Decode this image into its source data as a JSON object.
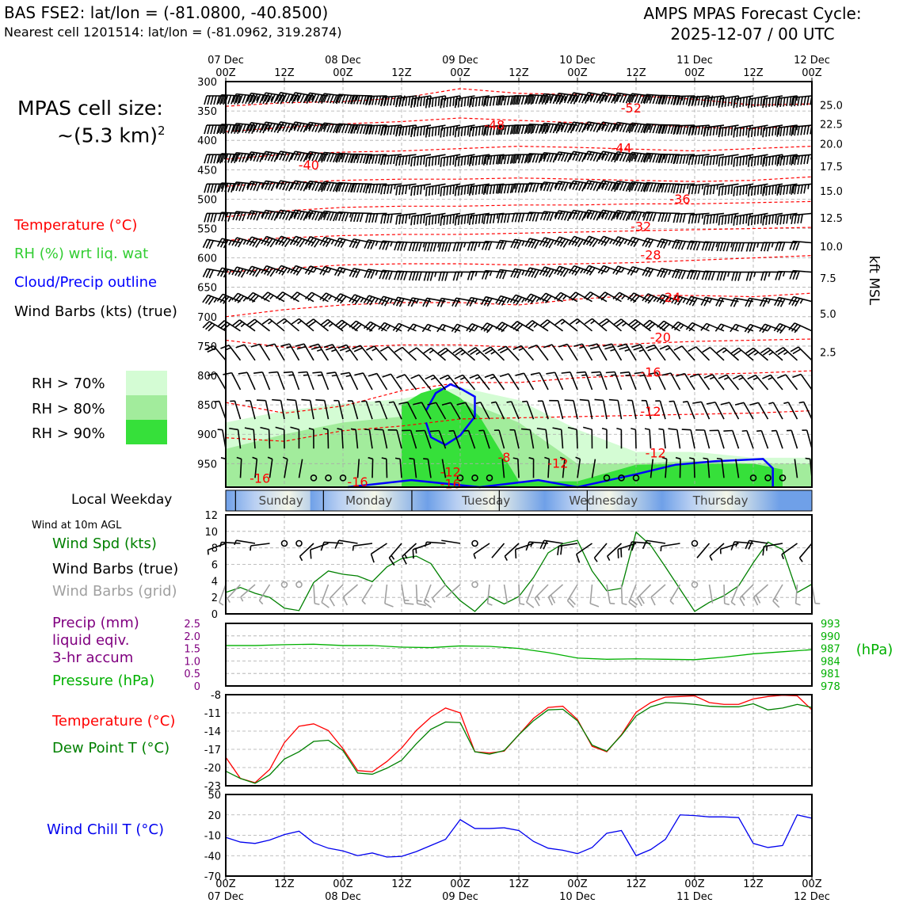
{
  "header": {
    "title": "BAS FSE2: lat/lon = (-81.0800, -40.8500)",
    "subtitle": "Nearest cell 1201514: lat/lon = (-81.0962, 319.2874)",
    "cycle_line1": "AMPS MPAS Forecast Cycle:",
    "cycle_line2": "2025-12-07 / 00 UTC",
    "cell_size_label": "MPAS cell size:",
    "cell_size_value": "~(5.3 km)",
    "cell_size_exp": "2"
  },
  "legend": {
    "temperature": "Temperature (°C)",
    "rh": "RH (%) wrt liq. wat",
    "cloud": "Cloud/Precip outline",
    "wind": "Wind Barbs (kts) (true)",
    "rh70": "RH > 70%",
    "rh80": "RH > 80%",
    "rh90": "RH > 90%",
    "weekday_title": "Local Weekday",
    "wind10m": "Wind at 10m AGL",
    "wind_spd": "Wind Spd (kts)",
    "wind_barbs_true": "Wind Barbs (true)",
    "wind_barbs_grid": "Wind Barbs (grid)",
    "precip1": "Precip (mm)",
    "precip2": "liquid eqiv.",
    "precip3": "3-hr accum",
    "pressure": "Pressure (hPa)",
    "temp2": "Temperature (°C)",
    "dewpoint": "Dew Point T (°C)",
    "windchill": "Wind Chill T (°C)",
    "kft_label": "kft MSL",
    "hpa_label": "(hPa)"
  },
  "colors": {
    "temp": "#ff0000",
    "rh": "#32cd32",
    "cloud": "#0000ff",
    "wind_spd": "#008000",
    "precip": "#800080",
    "pressure": "#00b000",
    "dewpoint": "#008000",
    "windchill": "#0000ee",
    "rh70": "#d4fcd4",
    "rh80": "#a2ec9c",
    "rh90": "#36e03a",
    "grid_barb": "#a0a0a0"
  },
  "chart_data": [
    {
      "type": "heatmap",
      "name": "sounding",
      "top_time_labels": [
        [
          "07 Dec",
          "00Z"
        ],
        [
          "",
          "12Z"
        ],
        [
          "08 Dec",
          "00Z"
        ],
        [
          "",
          "12Z"
        ],
        [
          "09 Dec",
          "00Z"
        ],
        [
          "",
          "12Z"
        ],
        [
          "10 Dec",
          "00Z"
        ],
        [
          "",
          "12Z"
        ],
        [
          "11 Dec",
          "00Z"
        ],
        [
          "",
          "12Z"
        ],
        [
          "12 Dec",
          "00Z"
        ]
      ],
      "pressure_levels": [
        "300",
        "350",
        "400",
        "450",
        "500",
        "550",
        "600",
        "650",
        "700",
        "750",
        "800",
        "850",
        "900",
        "950"
      ],
      "kft_levels": [
        "25.0",
        "22.5",
        "20.0",
        "17.5",
        "15.0",
        "12.5",
        "10.0",
        "7.5",
        "5.0",
        "2.5"
      ],
      "kft_pressure": [
        340,
        372,
        406,
        444,
        486,
        532,
        580,
        634,
        695,
        760
      ],
      "temp_labels": [
        {
          "t": "-52",
          "h": 83,
          "p": 346
        },
        {
          "t": "-48",
          "h": 55,
          "p": 375
        },
        {
          "t": "-44",
          "h": 81,
          "p": 414
        },
        {
          "t": "-40",
          "h": 17,
          "p": 443
        },
        {
          "t": "-36",
          "h": 93,
          "p": 501
        },
        {
          "t": "-32",
          "h": 85,
          "p": 547
        },
        {
          "t": "-28",
          "h": 87,
          "p": 596
        },
        {
          "t": "-24",
          "h": 91,
          "p": 668
        },
        {
          "t": "-20",
          "h": 89,
          "p": 736
        },
        {
          "t": "-16",
          "h": 87,
          "p": 795
        },
        {
          "t": "-12",
          "h": 87,
          "p": 862
        },
        {
          "t": "-12",
          "h": 88,
          "p": 933
        },
        {
          "t": "-8",
          "h": 57,
          "p": 940
        },
        {
          "t": "-12",
          "h": 68,
          "p": 950
        },
        {
          "t": "-12",
          "h": 46,
          "p": 965
        },
        {
          "t": "-16",
          "h": 7,
          "p": 976
        },
        {
          "t": "-16",
          "h": 27,
          "p": 982
        },
        {
          "t": "-16",
          "h": 46,
          "p": 985
        }
      ],
      "isotherms": [
        {
          "label": "-52",
          "h": [
            0,
            12,
            24,
            36,
            48,
            60,
            72,
            84,
            96,
            108,
            120
          ],
          "p": [
            342,
            336,
            334,
            328,
            312,
            320,
            322,
            324,
            330,
            340,
            338
          ]
        },
        {
          "label": "-48",
          "h": [
            0,
            12,
            24,
            36,
            48,
            60,
            72,
            84,
            96,
            108,
            120
          ],
          "p": [
            385,
            378,
            372,
            368,
            362,
            366,
            370,
            372,
            378,
            380,
            375
          ]
        },
        {
          "label": "-44",
          "h": [
            0,
            12,
            24,
            36,
            48,
            60,
            72,
            84,
            96,
            108,
            120
          ],
          "p": [
            432,
            424,
            420,
            418,
            414,
            410,
            412,
            415,
            418,
            414,
            410
          ]
        },
        {
          "label": "-40",
          "h": [
            0,
            12,
            24,
            36,
            48,
            60,
            72,
            84,
            96,
            108,
            120
          ],
          "p": [
            478,
            472,
            468,
            466,
            466,
            464,
            466,
            468,
            470,
            468,
            462
          ]
        },
        {
          "label": "-36",
          "h": [
            0,
            12,
            24,
            36,
            48,
            60,
            72,
            84,
            96,
            108,
            120
          ],
          "p": [
            530,
            520,
            514,
            512,
            512,
            510,
            510,
            508,
            508,
            506,
            504
          ]
        },
        {
          "label": "-32",
          "h": [
            0,
            12,
            24,
            36,
            48,
            60,
            72,
            84,
            96,
            108,
            120
          ],
          "p": [
            570,
            566,
            562,
            560,
            560,
            558,
            556,
            554,
            552,
            550,
            548
          ]
        },
        {
          "label": "-28",
          "h": [
            0,
            12,
            24,
            36,
            48,
            60,
            72,
            84,
            96,
            108,
            120
          ],
          "p": [
            624,
            618,
            612,
            610,
            610,
            612,
            610,
            608,
            604,
            600,
            596
          ]
        },
        {
          "label": "-24",
          "h": [
            0,
            12,
            24,
            36,
            48,
            60,
            72,
            84,
            96,
            108,
            120
          ],
          "p": [
            700,
            688,
            680,
            676,
            676,
            680,
            670,
            664,
            664,
            666,
            660
          ]
        },
        {
          "label": "-20",
          "h": [
            0,
            12,
            24,
            36,
            48,
            60,
            72,
            84,
            96,
            108,
            120
          ],
          "p": [
            740,
            752,
            752,
            748,
            748,
            752,
            750,
            746,
            742,
            740,
            738
          ]
        },
        {
          "label": "-16",
          "h": [
            0,
            12,
            24,
            36,
            48,
            60,
            72,
            84,
            96,
            108,
            120
          ],
          "p": [
            846,
            864,
            852,
            826,
            812,
            812,
            804,
            800,
            798,
            796,
            792
          ]
        },
        {
          "label": "-12",
          "h": [
            0,
            12,
            24,
            36,
            48,
            60,
            72,
            84,
            96,
            108,
            120
          ],
          "p": [
            906,
            912,
            894,
            886,
            874,
            872,
            870,
            868,
            866,
            864,
            860
          ]
        }
      ],
      "rh_regions": [
        {
          "level": "rh70",
          "h": [
            0,
            12,
            24,
            36,
            48,
            60,
            72,
            84,
            96,
            108,
            120
          ],
          "p_top": [
            880,
            860,
            848,
            840,
            820,
            842,
            892,
            930,
            930,
            940,
            940
          ],
          "p_bottom": [
            990,
            990,
            990,
            990,
            990,
            990,
            990,
            990,
            990,
            990,
            990
          ]
        },
        {
          "level": "rh80",
          "h": [
            0,
            12,
            24,
            36,
            48,
            60,
            72,
            84,
            96,
            108,
            120
          ],
          "p_top": [
            925,
            900,
            880,
            870,
            840,
            880,
            950,
            950,
            945,
            950,
            950
          ],
          "p_bottom": [
            990,
            990,
            990,
            990,
            990,
            990,
            990,
            990,
            990,
            990,
            990
          ]
        },
        {
          "level": "rh90",
          "h": [
            36,
            40,
            44,
            48,
            52,
            60,
            72,
            84,
            96,
            108,
            114
          ],
          "p_top": [
            850,
            830,
            820,
            838,
            870,
            980,
            980,
            952,
            950,
            950,
            960
          ],
          "p_bottom": [
            990,
            990,
            990,
            990,
            990,
            990,
            990,
            990,
            990,
            990,
            990
          ]
        }
      ],
      "cloud_outline": [
        {
          "h": [
            41,
            43,
            46,
            48,
            51,
            51,
            48,
            45,
            42,
            41
          ],
          "p": [
            860,
            830,
            815,
            822,
            836,
            870,
            902,
            918,
            905,
            880
          ]
        },
        {
          "h": [
            25,
            38,
            52,
            64,
            72,
            84,
            92,
            100,
            110,
            112,
            112
          ],
          "p": [
            990,
            978,
            990,
            978,
            990,
            968,
            952,
            946,
            942,
            958,
            990
          ]
        }
      ],
      "wind_barbs": {
        "speeds_by_level_kts": [
          70,
          65,
          60,
          55,
          50,
          40,
          35,
          30,
          25,
          20,
          15,
          10,
          10,
          5
        ],
        "directions_deg": [
          270,
          270,
          270,
          270,
          270,
          280,
          280,
          290,
          300,
          320,
          330,
          340,
          350,
          0
        ]
      },
      "x_range_hours": [
        0,
        120
      ],
      "y_range_hpa": [
        300,
        990
      ]
    },
    {
      "type": "line",
      "name": "weekday",
      "categories": [
        "Sunday",
        "Monday",
        "Tuesday",
        "Wednesday",
        "Thursday"
      ]
    },
    {
      "type": "line",
      "name": "wind_speed",
      "x": [
        0,
        3,
        6,
        9,
        12,
        15,
        18,
        21,
        24,
        27,
        30,
        33,
        36,
        39,
        42,
        45,
        48,
        51,
        54,
        57,
        60,
        63,
        66,
        69,
        72,
        75,
        78,
        81,
        84,
        87,
        90,
        93,
        96,
        99,
        102,
        105,
        108,
        111,
        114,
        117,
        120
      ],
      "values": [
        2.6,
        3.2,
        2.5,
        2,
        0.7,
        0.4,
        3.8,
        5.2,
        4.8,
        4.6,
        3.9,
        5.7,
        6.7,
        7,
        6.1,
        3.5,
        1.6,
        0.3,
        2.1,
        1.2,
        2.1,
        4.4,
        7.4,
        8.5,
        8.9,
        5.2,
        2.8,
        3.1,
        9.9,
        8.3,
        5.7,
        3.0,
        0.3,
        1.4,
        2.2,
        3.4,
        6.2,
        8.7,
        7.8,
        2.6,
        3.6
      ],
      "ylim": [
        0,
        12
      ],
      "yticks": [
        "0",
        "2",
        "4",
        "6",
        "8",
        "10",
        "12"
      ]
    },
    {
      "type": "line",
      "name": "precip_pressure",
      "precip_ticks": [
        "0",
        "0.5",
        "1.0",
        "1.5",
        "2.0",
        "2.5"
      ],
      "pressure_ticks": [
        "978",
        "981",
        "984",
        "987",
        "990",
        "993"
      ],
      "x": [
        0,
        6,
        12,
        18,
        24,
        30,
        36,
        42,
        48,
        54,
        60,
        66,
        72,
        78,
        84,
        90,
        96,
        102,
        108,
        114,
        120
      ],
      "pressure": [
        987.7,
        987.7,
        987.9,
        988.0,
        987.7,
        987.7,
        987.3,
        987.2,
        987.6,
        987.5,
        987.0,
        986.0,
        984.7,
        984.4,
        984.5,
        984.4,
        984.3,
        984.9,
        985.7,
        986.2,
        986.7
      ],
      "precip": [
        0,
        0,
        0,
        0,
        0,
        0,
        0,
        0,
        0,
        0,
        0,
        0,
        0,
        0,
        0,
        0,
        0,
        0,
        0,
        0,
        0
      ],
      "pressure_ylim": [
        978,
        993
      ],
      "precip_ylim": [
        0,
        2.5
      ]
    },
    {
      "type": "line",
      "name": "temperature",
      "yticks": [
        "-8",
        "-11",
        "-14",
        "-17",
        "-20",
        "-23"
      ],
      "ylim": [
        -23,
        -8
      ],
      "x": [
        0,
        3,
        6,
        9,
        12,
        15,
        18,
        21,
        24,
        27,
        30,
        33,
        36,
        39,
        42,
        45,
        48,
        51,
        54,
        57,
        60,
        63,
        66,
        69,
        72,
        75,
        78,
        81,
        84,
        87,
        90,
        93,
        96,
        99,
        102,
        105,
        108,
        111,
        114,
        117,
        120
      ],
      "temperature": [
        -18.3,
        -21.8,
        -22.5,
        -20.3,
        -15.9,
        -13.2,
        -12.8,
        -13.9,
        -16.9,
        -20.5,
        -20.7,
        -19.0,
        -16.8,
        -13.9,
        -11.7,
        -10.2,
        -11.0,
        -17.4,
        -17.6,
        -17.3,
        -14.6,
        -11.9,
        -10.1,
        -9.9,
        -12.1,
        -16.5,
        -17.4,
        -14.6,
        -10.9,
        -9.3,
        -8.4,
        -8.3,
        -8.2,
        -9.3,
        -9.6,
        -9.6,
        -8.7,
        -8.3,
        -8.1,
        -8.2,
        -10.5
      ],
      "dewpoint": [
        -20.6,
        -21.8,
        -22.6,
        -21.2,
        -18.6,
        -17.4,
        -15.7,
        -15.5,
        -17.2,
        -20.9,
        -21.1,
        -20.1,
        -18.8,
        -16.1,
        -13.7,
        -12.5,
        -12.6,
        -17.4,
        -17.8,
        -17.2,
        -14.6,
        -12.3,
        -10.5,
        -10.4,
        -12.3,
        -16.3,
        -17.3,
        -14.7,
        -11.5,
        -10.0,
        -9.3,
        -9.4,
        -9.6,
        -9.9,
        -10.0,
        -10.0,
        -9.5,
        -10.5,
        -10.2,
        -9.6,
        -10.1
      ]
    },
    {
      "type": "line",
      "name": "wind_chill",
      "yticks": [
        "50",
        "20",
        "-10",
        "-40",
        "-70"
      ],
      "ylim": [
        -70,
        50
      ],
      "x": [
        0,
        3,
        6,
        9,
        12,
        15,
        18,
        21,
        24,
        27,
        30,
        33,
        36,
        39,
        42,
        45,
        48,
        51,
        54,
        57,
        60,
        63,
        66,
        69,
        72,
        75,
        78,
        81,
        84,
        87,
        90,
        93,
        96,
        99,
        102,
        105,
        108,
        111,
        114,
        117,
        120
      ],
      "values": [
        -13,
        -20,
        -22,
        -17,
        -9,
        -4,
        -21,
        -29,
        -33,
        -40,
        -36,
        -42,
        -41,
        -34,
        -25,
        -16,
        13,
        0,
        0,
        1,
        -3,
        -19,
        -29,
        -32,
        -37,
        -28,
        -7,
        -3,
        -40,
        -31,
        -16,
        20,
        19,
        17,
        17,
        16,
        -22,
        -28,
        -25,
        20,
        15
      ],
      "bottom_time_labels": [
        [
          "00Z",
          "07 Dec"
        ],
        [
          "12Z",
          ""
        ],
        [
          "00Z",
          "08 Dec"
        ],
        [
          "12Z",
          ""
        ],
        [
          "00Z",
          "09 Dec"
        ],
        [
          "12Z",
          ""
        ],
        [
          "00Z",
          "10 Dec"
        ],
        [
          "12Z",
          ""
        ],
        [
          "00Z",
          "11 Dec"
        ],
        [
          "12Z",
          ""
        ],
        [
          "00Z",
          "12 Dec"
        ]
      ]
    }
  ]
}
